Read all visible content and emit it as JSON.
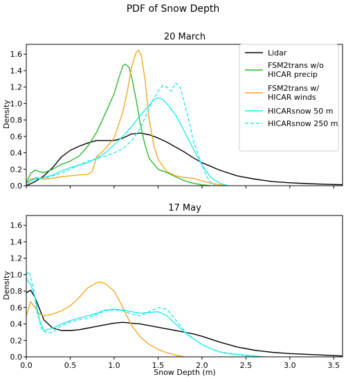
{
  "figure": {
    "suptitle": "PDF of Snow Depth"
  },
  "chart_data": [
    {
      "type": "line",
      "title": "20 March",
      "xlabel": "",
      "ylabel": "Density",
      "xlim": [
        0,
        3.6
      ],
      "ylim": [
        0,
        1.72
      ],
      "yticks": [
        0.0,
        0.2,
        0.4,
        0.6,
        0.8,
        1.0,
        1.2,
        1.4,
        1.6
      ],
      "yticklabels": [
        "0.0",
        "0.2",
        "0.4",
        "0.6",
        "0.8",
        "1.0",
        "1.2",
        "1.4",
        "1.6"
      ],
      "xticks": [
        0.0,
        0.5,
        1.0,
        1.5,
        2.0,
        2.5,
        3.0,
        3.5
      ],
      "show_xticklabels": false,
      "grid": false,
      "legend_position": "top-right",
      "series": [
        {
          "name": "Lidar",
          "color": "#000000",
          "dash": "solid",
          "points": [
            [
              0,
              0
            ],
            [
              0.1,
              0.05
            ],
            [
              0.2,
              0.12
            ],
            [
              0.3,
              0.22
            ],
            [
              0.4,
              0.35
            ],
            [
              0.5,
              0.43
            ],
            [
              0.6,
              0.48
            ],
            [
              0.7,
              0.52
            ],
            [
              0.8,
              0.55
            ],
            [
              0.9,
              0.55
            ],
            [
              1.0,
              0.55
            ],
            [
              1.1,
              0.58
            ],
            [
              1.2,
              0.63
            ],
            [
              1.3,
              0.64
            ],
            [
              1.4,
              0.62
            ],
            [
              1.5,
              0.58
            ],
            [
              1.6,
              0.53
            ],
            [
              1.7,
              0.47
            ],
            [
              1.8,
              0.41
            ],
            [
              1.9,
              0.34
            ],
            [
              2.0,
              0.28
            ],
            [
              2.2,
              0.19
            ],
            [
              2.4,
              0.12
            ],
            [
              2.6,
              0.08
            ],
            [
              2.8,
              0.05
            ],
            [
              3.0,
              0.035
            ],
            [
              3.2,
              0.025
            ],
            [
              3.4,
              0.018
            ],
            [
              3.6,
              0.012
            ]
          ]
        },
        {
          "name": "FSM2trans w/o HICAR precip",
          "color": "#2db82d",
          "dash": "solid",
          "points": [
            [
              0,
              0.03
            ],
            [
              0.05,
              0.15
            ],
            [
              0.1,
              0.19
            ],
            [
              0.15,
              0.17
            ],
            [
              0.2,
              0.16
            ],
            [
              0.3,
              0.2
            ],
            [
              0.4,
              0.26
            ],
            [
              0.5,
              0.3
            ],
            [
              0.6,
              0.36
            ],
            [
              0.7,
              0.48
            ],
            [
              0.8,
              0.65
            ],
            [
              0.9,
              0.88
            ],
            [
              1.0,
              1.12
            ],
            [
              1.05,
              1.3
            ],
            [
              1.1,
              1.46
            ],
            [
              1.13,
              1.48
            ],
            [
              1.17,
              1.44
            ],
            [
              1.2,
              1.32
            ],
            [
              1.25,
              1.05
            ],
            [
              1.3,
              0.74
            ],
            [
              1.35,
              0.5
            ],
            [
              1.4,
              0.33
            ],
            [
              1.5,
              0.2
            ],
            [
              1.6,
              0.16
            ],
            [
              1.7,
              0.11
            ],
            [
              1.8,
              0.06
            ],
            [
              1.9,
              0.03
            ],
            [
              2.0,
              0.01
            ],
            [
              2.1,
              0.0
            ]
          ]
        },
        {
          "name": "FSM2trans w/ HICAR winds",
          "color": "#f5a623",
          "dash": "solid",
          "points": [
            [
              0,
              0.02
            ],
            [
              0.05,
              0.08
            ],
            [
              0.1,
              0.09
            ],
            [
              0.2,
              0.08
            ],
            [
              0.3,
              0.09
            ],
            [
              0.4,
              0.11
            ],
            [
              0.5,
              0.12
            ],
            [
              0.6,
              0.13
            ],
            [
              0.7,
              0.14
            ],
            [
              0.75,
              0.17
            ],
            [
              0.8,
              0.35
            ],
            [
              0.9,
              0.45
            ],
            [
              1.0,
              0.58
            ],
            [
              1.1,
              0.9
            ],
            [
              1.15,
              1.15
            ],
            [
              1.2,
              1.45
            ],
            [
              1.25,
              1.62
            ],
            [
              1.28,
              1.65
            ],
            [
              1.31,
              1.58
            ],
            [
              1.35,
              1.3
            ],
            [
              1.4,
              0.8
            ],
            [
              1.45,
              0.5
            ],
            [
              1.5,
              0.32
            ],
            [
              1.6,
              0.17
            ],
            [
              1.7,
              0.12
            ],
            [
              1.8,
              0.1
            ],
            [
              1.9,
              0.09
            ],
            [
              2.0,
              0.06
            ],
            [
              2.1,
              0.03
            ],
            [
              2.2,
              0.01
            ],
            [
              2.3,
              0.0
            ]
          ]
        },
        {
          "name": "HICARsnow 50 m",
          "color": "#26e8e8",
          "dash": "solid",
          "points": [
            [
              0,
              0.03
            ],
            [
              0.1,
              0.08
            ],
            [
              0.2,
              0.1
            ],
            [
              0.3,
              0.13
            ],
            [
              0.4,
              0.18
            ],
            [
              0.5,
              0.22
            ],
            [
              0.6,
              0.25
            ],
            [
              0.7,
              0.28
            ],
            [
              0.8,
              0.33
            ],
            [
              0.9,
              0.4
            ],
            [
              1.0,
              0.5
            ],
            [
              1.1,
              0.6
            ],
            [
              1.2,
              0.72
            ],
            [
              1.3,
              0.86
            ],
            [
              1.4,
              0.98
            ],
            [
              1.45,
              1.05
            ],
            [
              1.5,
              1.07
            ],
            [
              1.55,
              1.05
            ],
            [
              1.6,
              1.0
            ],
            [
              1.7,
              0.86
            ],
            [
              1.8,
              0.66
            ],
            [
              1.9,
              0.45
            ],
            [
              2.0,
              0.25
            ],
            [
              2.1,
              0.1
            ],
            [
              2.2,
              0.03
            ],
            [
              2.3,
              0.0
            ]
          ]
        },
        {
          "name": "HICARsnow 250 m",
          "color": "#26e8e8",
          "dash": "dashed",
          "points": [
            [
              0,
              0.02
            ],
            [
              0.1,
              0.1
            ],
            [
              0.2,
              0.09
            ],
            [
              0.3,
              0.12
            ],
            [
              0.4,
              0.15
            ],
            [
              0.5,
              0.2
            ],
            [
              0.6,
              0.25
            ],
            [
              0.7,
              0.3
            ],
            [
              0.8,
              0.33
            ],
            [
              0.9,
              0.36
            ],
            [
              1.0,
              0.4
            ],
            [
              1.1,
              0.45
            ],
            [
              1.2,
              0.55
            ],
            [
              1.3,
              0.7
            ],
            [
              1.4,
              0.95
            ],
            [
              1.45,
              1.05
            ],
            [
              1.5,
              1.15
            ],
            [
              1.55,
              1.22
            ],
            [
              1.6,
              1.2
            ],
            [
              1.65,
              1.15
            ],
            [
              1.7,
              1.25
            ],
            [
              1.75,
              1.2
            ],
            [
              1.8,
              1.0
            ],
            [
              1.85,
              0.8
            ],
            [
              1.9,
              0.55
            ],
            [
              2.0,
              0.25
            ],
            [
              2.05,
              0.12
            ],
            [
              2.1,
              0.04
            ],
            [
              2.15,
              0.0
            ]
          ]
        }
      ]
    },
    {
      "type": "line",
      "title": "17 May",
      "xlabel": "Snow Depth (m)",
      "ylabel": "Density",
      "xlim": [
        0,
        3.6
      ],
      "ylim": [
        0,
        1.72
      ],
      "yticks": [
        0.0,
        0.2,
        0.4,
        0.6,
        0.8,
        1.0,
        1.2,
        1.4,
        1.6
      ],
      "yticklabels": [
        "0.0",
        "0.2",
        "0.4",
        "0.6",
        "0.8",
        "1.0",
        "1.2",
        "1.4",
        "1.6"
      ],
      "xticks": [
        0.0,
        0.5,
        1.0,
        1.5,
        2.0,
        2.5,
        3.0,
        3.5
      ],
      "xticklabels": [
        "0.0",
        "0.5",
        "1.0",
        "1.5",
        "2.0",
        "2.5",
        "3.0",
        "3.5"
      ],
      "show_xticklabels": true,
      "grid": false,
      "series": [
        {
          "name": "Lidar",
          "color": "#000000",
          "dash": "solid",
          "points": [
            [
              0,
              0.78
            ],
            [
              0.05,
              0.81
            ],
            [
              0.1,
              0.72
            ],
            [
              0.2,
              0.45
            ],
            [
              0.3,
              0.35
            ],
            [
              0.4,
              0.32
            ],
            [
              0.5,
              0.32
            ],
            [
              0.6,
              0.33
            ],
            [
              0.7,
              0.35
            ],
            [
              0.8,
              0.37
            ],
            [
              0.9,
              0.39
            ],
            [
              1.0,
              0.41
            ],
            [
              1.1,
              0.42
            ],
            [
              1.2,
              0.41
            ],
            [
              1.3,
              0.4
            ],
            [
              1.4,
              0.38
            ],
            [
              1.5,
              0.36
            ],
            [
              1.6,
              0.34
            ],
            [
              1.7,
              0.32
            ],
            [
              1.8,
              0.3
            ],
            [
              1.9,
              0.28
            ],
            [
              2.0,
              0.25
            ],
            [
              2.2,
              0.18
            ],
            [
              2.4,
              0.12
            ],
            [
              2.6,
              0.08
            ],
            [
              2.8,
              0.055
            ],
            [
              3.0,
              0.04
            ],
            [
              3.2,
              0.03
            ],
            [
              3.4,
              0.02
            ],
            [
              3.6,
              0.01
            ]
          ]
        },
        {
          "name": "FSM2trans w/ HICAR winds",
          "color": "#f5a623",
          "dash": "solid",
          "points": [
            [
              0,
              0.5
            ],
            [
              0.05,
              0.67
            ],
            [
              0.1,
              0.6
            ],
            [
              0.15,
              0.52
            ],
            [
              0.2,
              0.5
            ],
            [
              0.3,
              0.52
            ],
            [
              0.4,
              0.56
            ],
            [
              0.5,
              0.62
            ],
            [
              0.6,
              0.72
            ],
            [
              0.7,
              0.84
            ],
            [
              0.8,
              0.9
            ],
            [
              0.85,
              0.91
            ],
            [
              0.9,
              0.89
            ],
            [
              1.0,
              0.8
            ],
            [
              1.1,
              0.6
            ],
            [
              1.2,
              0.38
            ],
            [
              1.3,
              0.24
            ],
            [
              1.4,
              0.15
            ],
            [
              1.5,
              0.09
            ],
            [
              1.6,
              0.05
            ],
            [
              1.7,
              0.02
            ],
            [
              1.8,
              0.0
            ]
          ]
        },
        {
          "name": "HICARsnow 50 m",
          "color": "#26e8e8",
          "dash": "solid",
          "points": [
            [
              0,
              0.95
            ],
            [
              0.05,
              0.88
            ],
            [
              0.1,
              0.72
            ],
            [
              0.15,
              0.45
            ],
            [
              0.2,
              0.32
            ],
            [
              0.3,
              0.35
            ],
            [
              0.4,
              0.4
            ],
            [
              0.5,
              0.44
            ],
            [
              0.6,
              0.47
            ],
            [
              0.7,
              0.5
            ],
            [
              0.8,
              0.53
            ],
            [
              0.9,
              0.57
            ],
            [
              1.0,
              0.58
            ],
            [
              1.1,
              0.57
            ],
            [
              1.2,
              0.55
            ],
            [
              1.3,
              0.53
            ],
            [
              1.4,
              0.54
            ],
            [
              1.5,
              0.55
            ],
            [
              1.6,
              0.5
            ],
            [
              1.7,
              0.4
            ],
            [
              1.8,
              0.3
            ],
            [
              1.9,
              0.22
            ],
            [
              2.0,
              0.15
            ],
            [
              2.1,
              0.1
            ],
            [
              2.2,
              0.06
            ],
            [
              2.3,
              0.04
            ],
            [
              2.5,
              0.02
            ],
            [
              2.7,
              0.0
            ]
          ]
        },
        {
          "name": "HICARsnow 250 m",
          "color": "#26e8e8",
          "dash": "dashed",
          "points": [
            [
              0,
              1.0
            ],
            [
              0.03,
              1.04
            ],
            [
              0.08,
              0.85
            ],
            [
              0.12,
              0.55
            ],
            [
              0.18,
              0.32
            ],
            [
              0.25,
              0.29
            ],
            [
              0.3,
              0.3
            ],
            [
              0.4,
              0.38
            ],
            [
              0.5,
              0.42
            ],
            [
              0.6,
              0.45
            ],
            [
              0.7,
              0.47
            ],
            [
              0.8,
              0.52
            ],
            [
              0.9,
              0.56
            ],
            [
              1.0,
              0.57
            ],
            [
              1.1,
              0.56
            ],
            [
              1.2,
              0.52
            ],
            [
              1.3,
              0.5
            ],
            [
              1.4,
              0.55
            ],
            [
              1.5,
              0.6
            ],
            [
              1.6,
              0.58
            ],
            [
              1.7,
              0.45
            ],
            [
              1.8,
              0.32
            ],
            [
              1.9,
              0.22
            ],
            [
              2.0,
              0.15
            ],
            [
              2.1,
              0.1
            ],
            [
              2.2,
              0.06
            ],
            [
              2.4,
              0.03
            ],
            [
              2.6,
              0.0
            ]
          ]
        }
      ]
    }
  ]
}
